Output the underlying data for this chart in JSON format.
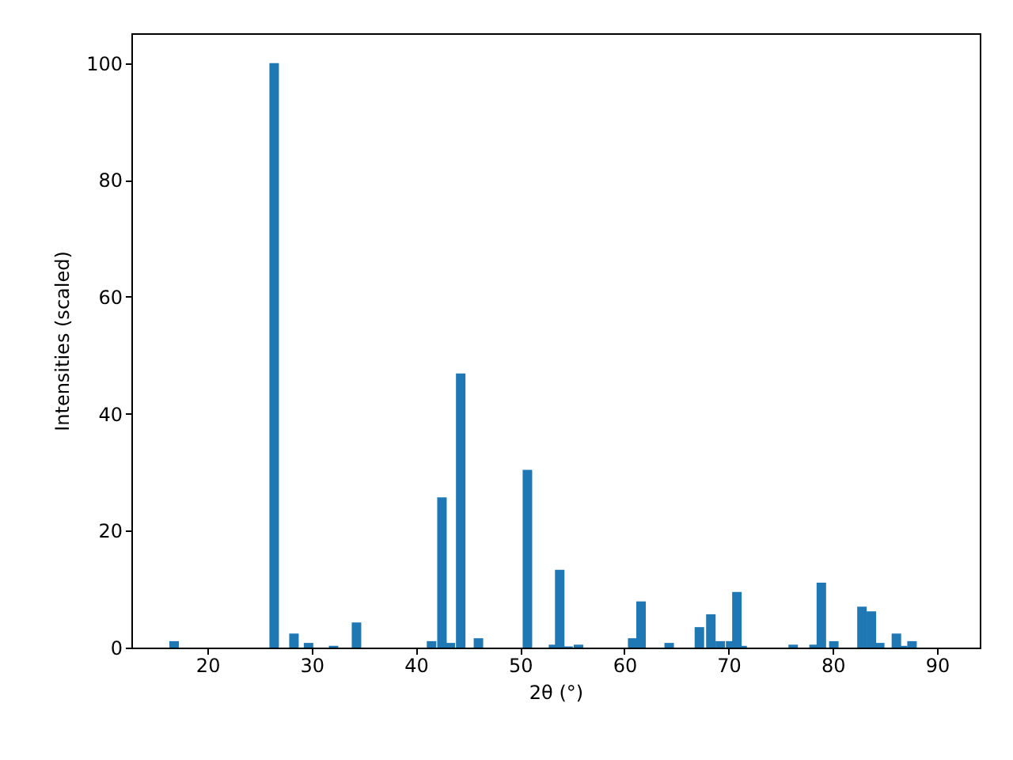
{
  "chart_data": {
    "type": "bar",
    "xlabel": "2θ (°)",
    "ylabel": "Intensities (scaled)",
    "x": [
      16.8,
      26.4,
      28.3,
      29.7,
      32.1,
      34.3,
      41.5,
      42.5,
      43.3,
      44.3,
      46.0,
      50.7,
      53.2,
      53.8,
      54.6,
      55.6,
      60.8,
      61.6,
      64.3,
      67.2,
      68.3,
      69.2,
      70.2,
      70.8,
      71.3,
      76.2,
      78.2,
      78.9,
      80.1,
      82.8,
      83.7,
      84.5,
      86.1,
      86.7,
      87.6
    ],
    "series": [
      {
        "color": "#1f77b4",
        "values": [
          1.1,
          100,
          2.4,
          0.8,
          0.3,
          4.3,
          1.1,
          25.7,
          0.8,
          46.9,
          1.6,
          30.4,
          0.5,
          13.3,
          0.2,
          0.5,
          1.6,
          7.9,
          0.8,
          3.5,
          5.7,
          1.1,
          1.1,
          9.5,
          0.3,
          0.5,
          0.5,
          11.1,
          1.1,
          7.0,
          6.2,
          0.8,
          2.4,
          0.3,
          1.1
        ]
      }
    ],
    "xlim": [
      12.7,
      94.1
    ],
    "xticks": [
      20,
      30,
      40,
      50,
      60,
      70,
      80,
      90
    ],
    "ylim": [
      0,
      105.1
    ],
    "yticks": [
      0,
      20,
      40,
      60,
      80,
      100
    ],
    "grid": false
  }
}
